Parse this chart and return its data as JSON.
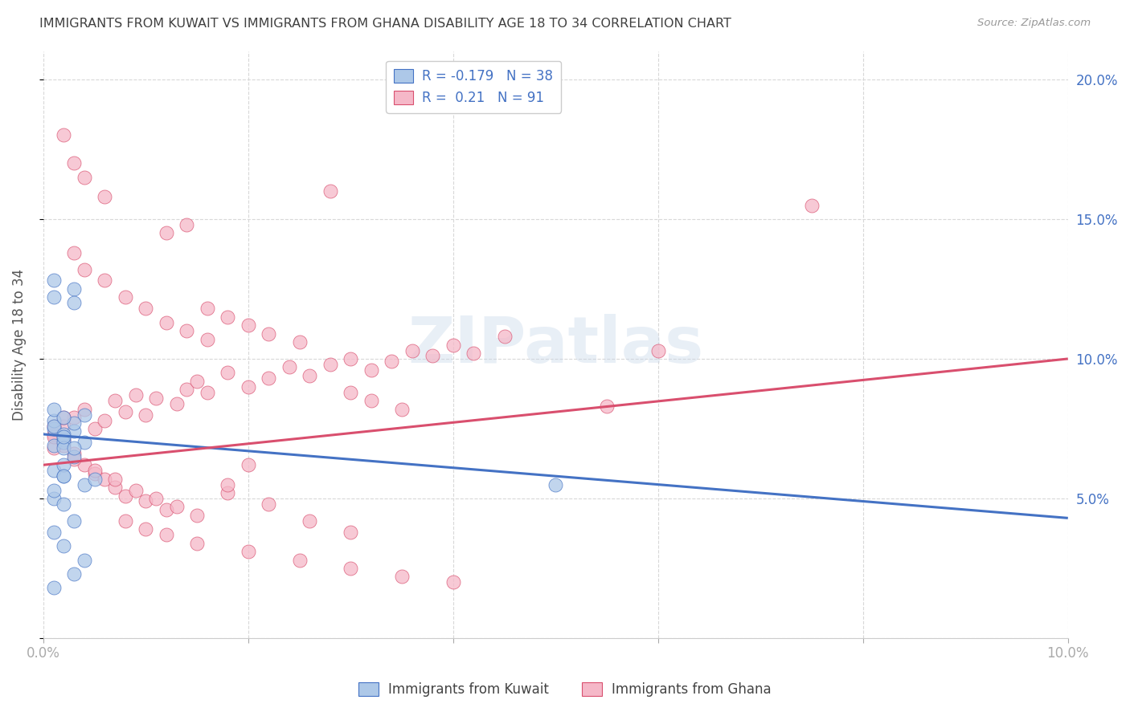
{
  "title": "IMMIGRANTS FROM KUWAIT VS IMMIGRANTS FROM GHANA DISABILITY AGE 18 TO 34 CORRELATION CHART",
  "source": "Source: ZipAtlas.com",
  "ylabel": "Disability Age 18 to 34",
  "x_min": 0.0,
  "x_max": 0.1,
  "y_min": 0.0,
  "y_max": 0.21,
  "kuwait_color": "#adc8e8",
  "ghana_color": "#f5b8c8",
  "kuwait_line_color": "#4472c4",
  "ghana_line_color": "#d94f6e",
  "kuwait_R": -0.179,
  "kuwait_N": 38,
  "ghana_R": 0.21,
  "ghana_N": 91,
  "legend_label_kuwait": "Immigrants from Kuwait",
  "legend_label_ghana": "Immigrants from Ghana",
  "watermark": "ZIPatlas",
  "background_color": "#ffffff",
  "grid_color": "#d8d8d8",
  "title_color": "#404040",
  "axis_tick_color": "#4472c4",
  "kuwait_line_y_start": 0.073,
  "kuwait_line_y_end": 0.043,
  "ghana_line_y_start": 0.062,
  "ghana_line_y_end": 0.1,
  "kuwait_points_x": [
    0.001,
    0.002,
    0.001,
    0.003,
    0.002,
    0.001,
    0.004,
    0.002,
    0.001,
    0.003,
    0.002,
    0.001,
    0.003,
    0.002,
    0.001,
    0.004,
    0.002,
    0.003,
    0.001,
    0.002,
    0.003,
    0.001,
    0.002,
    0.004,
    0.001,
    0.003,
    0.002,
    0.001,
    0.005,
    0.002,
    0.003,
    0.001,
    0.002,
    0.004,
    0.003,
    0.05,
    0.001,
    0.002
  ],
  "kuwait_points_y": [
    0.075,
    0.072,
    0.078,
    0.074,
    0.071,
    0.076,
    0.08,
    0.073,
    0.069,
    0.125,
    0.07,
    0.128,
    0.077,
    0.068,
    0.082,
    0.07,
    0.079,
    0.12,
    0.122,
    0.072,
    0.065,
    0.06,
    0.058,
    0.055,
    0.05,
    0.068,
    0.062,
    0.053,
    0.057,
    0.048,
    0.042,
    0.038,
    0.033,
    0.028,
    0.023,
    0.055,
    0.018,
    0.058
  ],
  "ghana_points_x": [
    0.001,
    0.002,
    0.003,
    0.004,
    0.005,
    0.006,
    0.007,
    0.008,
    0.009,
    0.01,
    0.011,
    0.012,
    0.013,
    0.014,
    0.015,
    0.016,
    0.018,
    0.02,
    0.022,
    0.024,
    0.026,
    0.028,
    0.03,
    0.032,
    0.034,
    0.036,
    0.038,
    0.04,
    0.042,
    0.045,
    0.001,
    0.002,
    0.003,
    0.004,
    0.005,
    0.006,
    0.007,
    0.008,
    0.01,
    0.012,
    0.014,
    0.016,
    0.018,
    0.02,
    0.022,
    0.025,
    0.028,
    0.03,
    0.032,
    0.035,
    0.001,
    0.002,
    0.003,
    0.004,
    0.006,
    0.008,
    0.01,
    0.012,
    0.014,
    0.016,
    0.001,
    0.002,
    0.003,
    0.005,
    0.007,
    0.009,
    0.011,
    0.013,
    0.015,
    0.018,
    0.002,
    0.003,
    0.004,
    0.006,
    0.008,
    0.01,
    0.012,
    0.015,
    0.02,
    0.025,
    0.03,
    0.035,
    0.04,
    0.018,
    0.022,
    0.026,
    0.03,
    0.02,
    0.06,
    0.075,
    0.055
  ],
  "ghana_points_y": [
    0.073,
    0.076,
    0.079,
    0.082,
    0.075,
    0.078,
    0.085,
    0.081,
    0.087,
    0.08,
    0.086,
    0.145,
    0.084,
    0.089,
    0.092,
    0.088,
    0.095,
    0.09,
    0.093,
    0.097,
    0.094,
    0.098,
    0.1,
    0.096,
    0.099,
    0.103,
    0.101,
    0.105,
    0.102,
    0.108,
    0.068,
    0.071,
    0.066,
    0.062,
    0.059,
    0.057,
    0.054,
    0.051,
    0.049,
    0.046,
    0.148,
    0.118,
    0.115,
    0.112,
    0.109,
    0.106,
    0.16,
    0.088,
    0.085,
    0.082,
    0.076,
    0.079,
    0.138,
    0.132,
    0.128,
    0.122,
    0.118,
    0.113,
    0.11,
    0.107,
    0.072,
    0.069,
    0.064,
    0.06,
    0.057,
    0.053,
    0.05,
    0.047,
    0.044,
    0.052,
    0.18,
    0.17,
    0.165,
    0.158,
    0.042,
    0.039,
    0.037,
    0.034,
    0.031,
    0.028,
    0.025,
    0.022,
    0.02,
    0.055,
    0.048,
    0.042,
    0.038,
    0.062,
    0.103,
    0.155,
    0.083
  ]
}
